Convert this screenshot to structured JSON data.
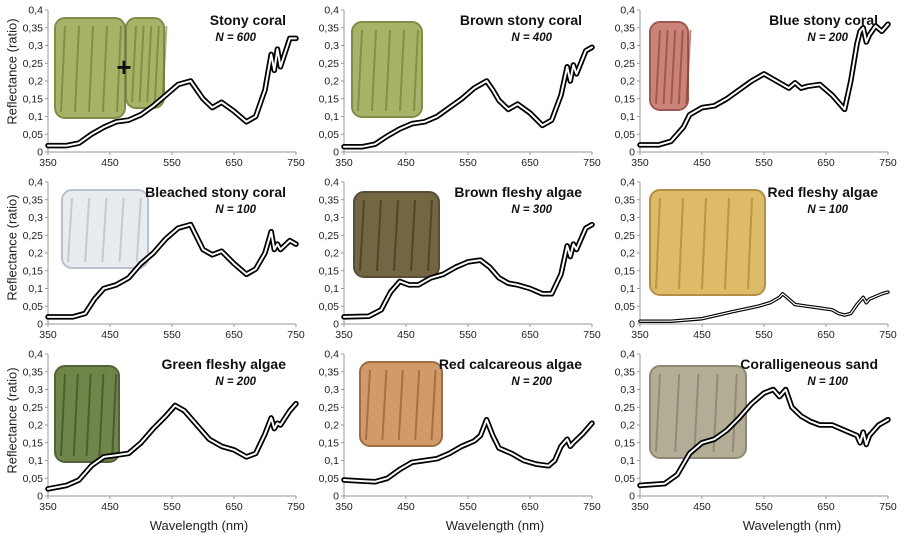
{
  "figure": {
    "ylabel": "Reflectance (ratio)",
    "xlabel": "Wavelength (nm)"
  },
  "chart_data": [
    {
      "type": "line",
      "title": "Stony coral",
      "n_label": "N = 600",
      "photo": "stony-coral-photo",
      "xlim": [
        350,
        750
      ],
      "ylim": [
        0,
        0.4
      ],
      "xticks": [
        "350",
        "450",
        "550",
        "650",
        "750"
      ],
      "yticks": [
        "0",
        "0,05",
        "0,1",
        "0,15",
        "0,2",
        "0,25",
        "0,3",
        "0,35",
        "0,4"
      ],
      "x": [
        350,
        380,
        400,
        420,
        440,
        460,
        480,
        500,
        520,
        540,
        560,
        580,
        590,
        600,
        615,
        630,
        650,
        670,
        685,
        700,
        710,
        715,
        720,
        725,
        740,
        750
      ],
      "y": [
        0.018,
        0.018,
        0.025,
        0.05,
        0.07,
        0.085,
        0.09,
        0.105,
        0.13,
        0.16,
        0.19,
        0.2,
        0.175,
        0.15,
        0.125,
        0.14,
        0.115,
        0.085,
        0.1,
        0.175,
        0.275,
        0.23,
        0.29,
        0.24,
        0.32,
        0.32
      ]
    },
    {
      "type": "line",
      "title": "Brown stony coral",
      "n_label": "N = 400",
      "photo": "brown-stony-coral-photo",
      "xlim": [
        350,
        750
      ],
      "ylim": [
        0,
        0.4
      ],
      "xticks": [
        "350",
        "450",
        "550",
        "650",
        "750"
      ],
      "yticks": [
        "0",
        "0,05",
        "0,1",
        "0,15",
        "0,2",
        "0,25",
        "0,3",
        "0,35",
        "0,4"
      ],
      "x": [
        350,
        380,
        400,
        420,
        440,
        460,
        480,
        500,
        520,
        540,
        560,
        580,
        590,
        600,
        615,
        630,
        650,
        670,
        685,
        700,
        710,
        715,
        720,
        725,
        740,
        750
      ],
      "y": [
        0.015,
        0.015,
        0.022,
        0.045,
        0.065,
        0.08,
        0.085,
        0.1,
        0.125,
        0.15,
        0.18,
        0.2,
        0.175,
        0.145,
        0.12,
        0.135,
        0.11,
        0.075,
        0.09,
        0.16,
        0.24,
        0.2,
        0.245,
        0.22,
        0.285,
        0.295
      ]
    },
    {
      "type": "line",
      "title": "Blue stony coral",
      "n_label": "N = 200",
      "photo": "blue-stony-coral-photo",
      "xlim": [
        350,
        750
      ],
      "ylim": [
        0,
        0.4
      ],
      "xticks": [
        "350",
        "450",
        "550",
        "650",
        "750"
      ],
      "yticks": [
        "0",
        "0,05",
        "0,1",
        "0,15",
        "0,2",
        "0,25",
        "0,3",
        "0,35",
        "0,4"
      ],
      "x": [
        350,
        380,
        400,
        420,
        430,
        450,
        470,
        490,
        510,
        530,
        550,
        570,
        590,
        600,
        610,
        620,
        640,
        660,
        680,
        690,
        700,
        705,
        710,
        715,
        720,
        730,
        740,
        750
      ],
      "y": [
        0.02,
        0.02,
        0.03,
        0.07,
        0.105,
        0.125,
        0.13,
        0.15,
        0.175,
        0.2,
        0.22,
        0.2,
        0.18,
        0.195,
        0.18,
        0.185,
        0.19,
        0.16,
        0.12,
        0.2,
        0.305,
        0.34,
        0.35,
        0.31,
        0.33,
        0.355,
        0.34,
        0.36
      ]
    },
    {
      "type": "line",
      "title": "Bleached stony coral",
      "n_label": "N = 100",
      "photo": "bleached-stony-coral-photo",
      "xlim": [
        350,
        750
      ],
      "ylim": [
        0,
        0.4
      ],
      "xticks": [
        "350",
        "450",
        "550",
        "650",
        "750"
      ],
      "yticks": [
        "0",
        "0,05",
        "0,1",
        "0,15",
        "0,2",
        "0,25",
        "0,3",
        "0,35",
        "0,4"
      ],
      "x": [
        350,
        390,
        410,
        425,
        440,
        460,
        480,
        500,
        520,
        540,
        560,
        580,
        590,
        600,
        615,
        630,
        650,
        670,
        685,
        700,
        710,
        715,
        720,
        725,
        740,
        750
      ],
      "y": [
        0.02,
        0.02,
        0.03,
        0.07,
        0.1,
        0.11,
        0.13,
        0.17,
        0.2,
        0.24,
        0.27,
        0.28,
        0.245,
        0.21,
        0.195,
        0.205,
        0.17,
        0.14,
        0.155,
        0.2,
        0.26,
        0.21,
        0.225,
        0.21,
        0.235,
        0.225
      ]
    },
    {
      "type": "line",
      "title": "Brown fleshy algae",
      "n_label": "N = 300",
      "photo": "brown-fleshy-algae-photo",
      "xlim": [
        350,
        750
      ],
      "ylim": [
        0,
        0.4
      ],
      "xticks": [
        "350",
        "450",
        "550",
        "650",
        "750"
      ],
      "yticks": [
        "0",
        "0,05",
        "0,1",
        "0,15",
        "0,2",
        "0,25",
        "0,3",
        "0,35",
        "0,4"
      ],
      "x": [
        350,
        390,
        410,
        425,
        440,
        455,
        470,
        490,
        510,
        530,
        550,
        570,
        585,
        600,
        615,
        630,
        650,
        670,
        685,
        700,
        710,
        715,
        720,
        725,
        740,
        750
      ],
      "y": [
        0.02,
        0.022,
        0.04,
        0.09,
        0.12,
        0.11,
        0.11,
        0.13,
        0.14,
        0.16,
        0.175,
        0.18,
        0.16,
        0.13,
        0.115,
        0.11,
        0.1,
        0.085,
        0.085,
        0.14,
        0.22,
        0.19,
        0.225,
        0.21,
        0.27,
        0.28
      ]
    },
    {
      "type": "line",
      "title": "Red fleshy algae",
      "n_label": "N = 100",
      "photo": "red-fleshy-algae-photo",
      "xlim": [
        350,
        750
      ],
      "ylim": [
        0,
        0.4
      ],
      "xticks": [
        "350",
        "450",
        "550",
        "650",
        "750"
      ],
      "yticks": [
        "0",
        "0,05",
        "0,1",
        "0,15",
        "0,2",
        "0,25",
        "0,3",
        "0,35",
        "0,4"
      ],
      "x": [
        350,
        400,
        450,
        500,
        540,
        560,
        575,
        580,
        590,
        600,
        620,
        640,
        660,
        670,
        680,
        690,
        700,
        710,
        715,
        720,
        740,
        750
      ],
      "y": [
        0.008,
        0.008,
        0.015,
        0.035,
        0.05,
        0.06,
        0.075,
        0.085,
        0.07,
        0.055,
        0.05,
        0.045,
        0.04,
        0.03,
        0.025,
        0.03,
        0.055,
        0.075,
        0.06,
        0.07,
        0.085,
        0.09
      ]
    },
    {
      "type": "line",
      "title": "Green fleshy algae",
      "n_label": "N = 200",
      "photo": "green-fleshy-algae-photo",
      "xlim": [
        350,
        750
      ],
      "ylim": [
        0,
        0.4
      ],
      "xticks": [
        "350",
        "450",
        "550",
        "650",
        "750"
      ],
      "yticks": [
        "0",
        "0,05",
        "0,1",
        "0,15",
        "0,2",
        "0,25",
        "0,3",
        "0,35",
        "0,4"
      ],
      "x": [
        350,
        380,
        400,
        420,
        440,
        460,
        480,
        500,
        520,
        540,
        555,
        570,
        590,
        610,
        630,
        650,
        670,
        685,
        700,
        710,
        715,
        720,
        725,
        740,
        750
      ],
      "y": [
        0.02,
        0.03,
        0.045,
        0.085,
        0.11,
        0.115,
        0.12,
        0.15,
        0.19,
        0.225,
        0.255,
        0.24,
        0.2,
        0.16,
        0.14,
        0.13,
        0.11,
        0.12,
        0.175,
        0.22,
        0.19,
        0.205,
        0.2,
        0.24,
        0.26
      ]
    },
    {
      "type": "line",
      "title": "Red calcareous algae",
      "n_label": "N = 200",
      "photo": "red-calcareous-algae-photo",
      "xlim": [
        350,
        750
      ],
      "ylim": [
        0,
        0.4
      ],
      "xticks": [
        "350",
        "450",
        "550",
        "650",
        "750"
      ],
      "yticks": [
        "0",
        "0,05",
        "0,1",
        "0,15",
        "0,2",
        "0,25",
        "0,3",
        "0,35",
        "0,4"
      ],
      "x": [
        350,
        380,
        400,
        420,
        440,
        460,
        480,
        500,
        520,
        540,
        560,
        570,
        580,
        590,
        600,
        620,
        640,
        660,
        680,
        690,
        700,
        710,
        715,
        720,
        735,
        750
      ],
      "y": [
        0.045,
        0.042,
        0.04,
        0.05,
        0.075,
        0.095,
        0.1,
        0.105,
        0.12,
        0.14,
        0.155,
        0.17,
        0.215,
        0.17,
        0.135,
        0.12,
        0.1,
        0.09,
        0.085,
        0.1,
        0.14,
        0.16,
        0.14,
        0.15,
        0.175,
        0.205
      ]
    },
    {
      "type": "line",
      "title": "Coralligeneous sand",
      "n_label": "N = 100",
      "photo": "coralligeneous-sand-photo",
      "xlim": [
        350,
        750
      ],
      "ylim": [
        0,
        0.4
      ],
      "xticks": [
        "350",
        "450",
        "550",
        "650",
        "750"
      ],
      "yticks": [
        "0",
        "0,05",
        "0,1",
        "0,15",
        "0,2",
        "0,25",
        "0,3",
        "0,35",
        "0,4"
      ],
      "x": [
        350,
        390,
        410,
        430,
        450,
        470,
        490,
        510,
        530,
        550,
        565,
        575,
        585,
        595,
        610,
        625,
        640,
        660,
        680,
        700,
        705,
        710,
        715,
        720,
        735,
        750
      ],
      "y": [
        0.03,
        0.035,
        0.06,
        0.12,
        0.15,
        0.16,
        0.185,
        0.22,
        0.26,
        0.29,
        0.3,
        0.28,
        0.3,
        0.25,
        0.225,
        0.21,
        0.2,
        0.2,
        0.185,
        0.17,
        0.15,
        0.18,
        0.145,
        0.17,
        0.2,
        0.215
      ]
    }
  ]
}
